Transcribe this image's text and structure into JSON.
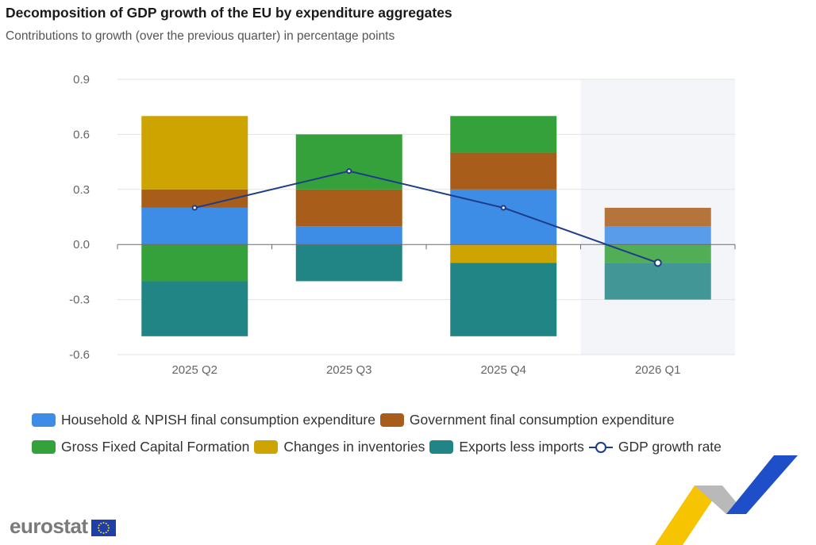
{
  "title": "Decomposition of GDP growth of the EU by expenditure aggregates",
  "subtitle": "Contributions to growth (over the previous quarter) in percentage points",
  "branding": {
    "logo_text": "eurostat"
  },
  "colors": {
    "household": "#3d8ce6",
    "government": "#a95d1b",
    "gfcf": "#34a13a",
    "inventories": "#cda400",
    "exports": "#228585",
    "gdp_line": "#1f3c88",
    "forecast_band": "#f4f5f9"
  },
  "legend": [
    {
      "key": "household",
      "label": "Household & NPISH final consumption expenditure"
    },
    {
      "key": "government",
      "label": "Government final consumption expenditure"
    },
    {
      "key": "gfcf",
      "label": "Gross Fixed Capital Formation"
    },
    {
      "key": "inventories",
      "label": "Changes in inventories"
    },
    {
      "key": "exports",
      "label": "Exports less imports"
    },
    {
      "key": "gdp",
      "label": "GDP growth rate"
    }
  ],
  "chart_data": {
    "type": "bar",
    "stacked": true,
    "categories": [
      "2025 Q2",
      "2025 Q3",
      "2025 Q4",
      "2026 Q1"
    ],
    "highlighted_category": "2026 Q1",
    "ylim": [
      -0.6,
      0.9
    ],
    "yticks": [
      "0.9",
      "0.6",
      "0.3",
      "0.0",
      "-0.3",
      "-0.6"
    ],
    "ytick_values": [
      0.9,
      0.6,
      0.3,
      0.0,
      -0.3,
      -0.6
    ],
    "grid": true,
    "legend_position": "bottom",
    "series": [
      {
        "key": "household",
        "name": "Household & NPISH final consumption expenditure",
        "values": [
          0.2,
          0.1,
          0.3,
          0.1
        ]
      },
      {
        "key": "government",
        "name": "Government final consumption expenditure",
        "values": [
          0.1,
          0.2,
          0.2,
          0.1
        ]
      },
      {
        "key": "gfcf",
        "name": "Gross Fixed Capital Formation",
        "values": [
          -0.2,
          0.3,
          0.2,
          -0.1
        ]
      },
      {
        "key": "inventories",
        "name": "Changes in inventories",
        "values": [
          0.4,
          0.0,
          -0.1,
          0.0
        ]
      },
      {
        "key": "exports",
        "name": "Exports less imports",
        "values": [
          -0.3,
          -0.2,
          -0.4,
          -0.2
        ]
      }
    ],
    "line": {
      "name": "GDP growth rate",
      "values": [
        0.2,
        0.4,
        0.2,
        -0.1
      ]
    }
  }
}
